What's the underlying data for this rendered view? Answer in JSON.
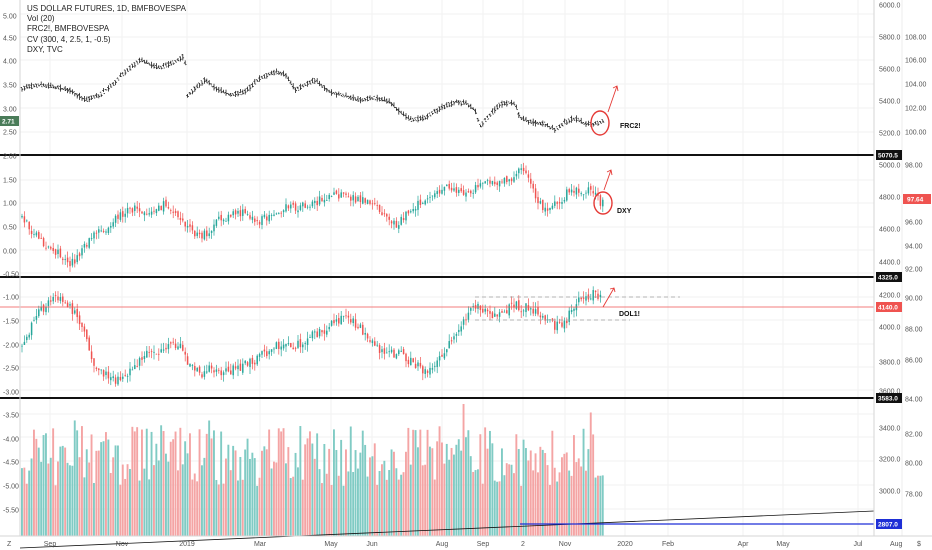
{
  "legend": {
    "title": "US DOLLAR FUTURES, 1D, BMFBOVESPA",
    "vol": "Vol (20)",
    "frc": "FRC2!, BMFBOVESPA",
    "cv": "CV (300, 4, 2.5, 1, -0.5)",
    "dxy": "DXY, TVC"
  },
  "left_axis": {
    "ticks": [
      "5.00",
      "4.50",
      "4.00",
      "3.50",
      "3.00",
      "2.71",
      "2.50",
      "2.00",
      "1.50",
      "1.00",
      "0.50",
      "0.00",
      "-0.50",
      "-1.00",
      "-1.50",
      "-2.00",
      "-2.50",
      "-3.00",
      "-3.50",
      "-4.00",
      "-4.50",
      "-5.00",
      "-5.50"
    ],
    "current_badge": "2.71"
  },
  "right_axis_1": {
    "ticks": [
      "6000.0",
      "5800.0",
      "5600.0",
      "5400.0",
      "5200.0",
      "5070.5",
      "5000.0",
      "4800.0",
      "4600.0",
      "4400.0",
      "4325.0",
      "4200.0",
      "4140.0",
      "4000.0",
      "3800.0",
      "3600.0",
      "3583.0",
      "3400.0",
      "3200.0",
      "3000.0",
      "2807.0"
    ],
    "badges": [
      {
        "text": "5070.5",
        "color": "#111111"
      },
      {
        "text": "4325.0",
        "color": "#111111"
      },
      {
        "text": "4140.0",
        "color": "#ef5350"
      },
      {
        "text": "3583.0",
        "color": "#111111"
      },
      {
        "text": "2807.0",
        "color": "#1e2fd6"
      }
    ]
  },
  "right_axis_2": {
    "ticks": [
      "108.00",
      "106.00",
      "104.00",
      "102.00",
      "100.00",
      "98.00",
      "97.64",
      "96.00",
      "94.00",
      "92.00",
      "90.00",
      "88.00",
      "86.00",
      "84.00",
      "82.00",
      "80.00",
      "78.00"
    ],
    "badge": {
      "text": "97.64",
      "color": "#ef5350"
    }
  },
  "time_axis": {
    "labels": [
      "Sep",
      "Nov",
      "2019",
      "Mar",
      "May",
      "Jun",
      "Aug",
      "Sep",
      "2",
      "Nov",
      "2020",
      "Feb",
      "Apr",
      "May",
      "Jul",
      "Aug"
    ]
  },
  "annotations": {
    "frc": "FRC2!",
    "dxy": "DXY",
    "dol": "DOL1!"
  },
  "corner": {
    "left": "Z",
    "right": "$"
  },
  "colors": {
    "up": "#26a69a",
    "down": "#ef5350",
    "vol_up": "#80cbc4",
    "vol_down": "#f4a4a4",
    "annot": "#e53935",
    "dash": "#9e9e9e",
    "blue_line": "#1e2fd6"
  }
}
